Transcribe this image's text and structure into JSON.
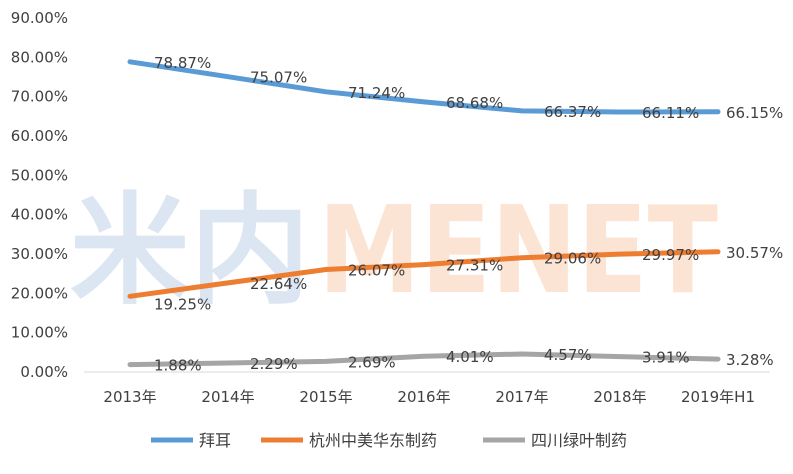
{
  "chart_data": {
    "type": "line",
    "categories": [
      "2013年",
      "2014年",
      "2015年",
      "2016年",
      "2017年",
      "2018年",
      "2019年H1"
    ],
    "ylim": [
      0,
      90
    ],
    "yticks": [
      "0.00%",
      "10.00%",
      "20.00%",
      "30.00%",
      "40.00%",
      "50.00%",
      "60.00%",
      "70.00%",
      "80.00%",
      "90.00%"
    ],
    "grid": false,
    "legend_position": "bottom",
    "series": [
      {
        "name": "拜耳",
        "color": "#5B9BD5",
        "values": [
          78.87,
          75.07,
          71.24,
          68.68,
          66.37,
          66.11,
          66.15
        ],
        "labels": [
          "78.87%",
          "75.07%",
          "71.24%",
          "68.68%",
          "66.37%",
          "66.11%",
          "66.15%"
        ]
      },
      {
        "name": "杭州中美华东制药",
        "color": "#ED7D31",
        "values": [
          19.25,
          22.64,
          26.07,
          27.31,
          29.06,
          29.97,
          30.57
        ],
        "labels": [
          "19.25%",
          "22.64%",
          "26.07%",
          "27.31%",
          "29.06%",
          "29.97%",
          "30.57%"
        ]
      },
      {
        "name": "四川绿叶制药",
        "color": "#A5A5A5",
        "values": [
          1.88,
          2.29,
          2.69,
          4.01,
          4.57,
          3.91,
          3.28
        ],
        "labels": [
          "1.88%",
          "2.29%",
          "2.69%",
          "4.01%",
          "4.57%",
          "3.91%",
          "3.28%"
        ]
      }
    ]
  },
  "watermark": {
    "chinese": "米内",
    "latin": "MENET",
    "colors": [
      "#DCE6F2",
      "#FCE4D4"
    ]
  }
}
